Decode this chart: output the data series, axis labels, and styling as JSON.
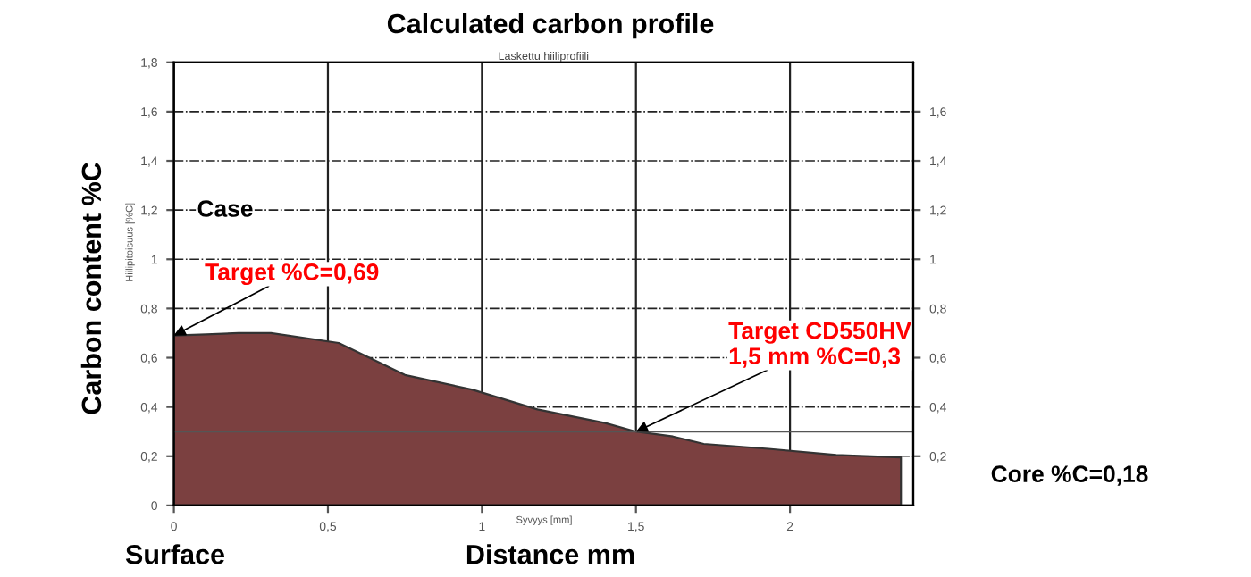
{
  "chart_data": {
    "type": "area",
    "title": "Calculated carbon profile",
    "subtitle": "Laskettu hiiliprofiili",
    "xlabel": "Distance mm",
    "ylabel": "Carbon content %C",
    "annotations": [
      "Hiilipitoisuus [%C]",
      "Syvyys [mm]",
      "Case",
      "Surface",
      "Core %C=0,18",
      {
        "text": "Target %C=0,69",
        "x": 0,
        "y": 0.69
      },
      {
        "text": "Target CD550HV\n1,5 mm %C=0,3",
        "x": 1.5,
        "y": 0.3
      }
    ],
    "x": [
      0,
      0.105,
      0.21,
      0.315,
      0.535,
      0.75,
      0.97,
      1.18,
      1.4,
      1.5,
      1.62,
      1.72,
      1.93,
      2.15,
      2.36
    ],
    "series": [
      {
        "color": "#7b4040",
        "values": [
          0.69,
          0.695,
          0.7,
          0.7,
          0.66,
          0.53,
          0.47,
          0.39,
          0.335,
          0.3,
          0.28,
          0.25,
          0.23,
          0.205,
          0.195
        ]
      }
    ],
    "xlim": [
      0,
      2.4
    ],
    "xticks": [
      0,
      {
        "value": 0.5,
        "label": "0,5"
      },
      1,
      {
        "value": 1.5,
        "label": "1,5"
      },
      2
    ],
    "ylim": [
      0,
      1.8
    ],
    "yticks": [
      0,
      {
        "value": 0.2,
        "label": "0,2"
      },
      {
        "value": 0.4,
        "label": "0,4"
      },
      {
        "value": 0.6,
        "label": "0,6"
      },
      {
        "value": 0.8,
        "label": "0,8"
      },
      1,
      {
        "value": 1.2,
        "label": "1,2"
      },
      {
        "value": 1.4,
        "label": "1,4"
      },
      {
        "value": 1.6,
        "label": "1,6"
      },
      {
        "value": 1.8,
        "label": "1,8"
      }
    ],
    "y2lim": [
      0,
      1.8
    ],
    "y2ticks": [
      {
        "value": 0.2,
        "label": "0,2"
      },
      {
        "value": 0.4,
        "label": "0,4"
      },
      {
        "value": 0.6,
        "label": "0,6"
      },
      {
        "value": 0.8,
        "label": "0,8"
      },
      1,
      {
        "value": 1.2,
        "label": "1,2"
      },
      {
        "value": 1.4,
        "label": "1,4"
      },
      {
        "value": 1.6,
        "label": "1,6"
      }
    ],
    "ref_lines": [
      {
        "axis": "y",
        "value": 0.3,
        "color": "#555555"
      }
    ],
    "grid": true
  }
}
